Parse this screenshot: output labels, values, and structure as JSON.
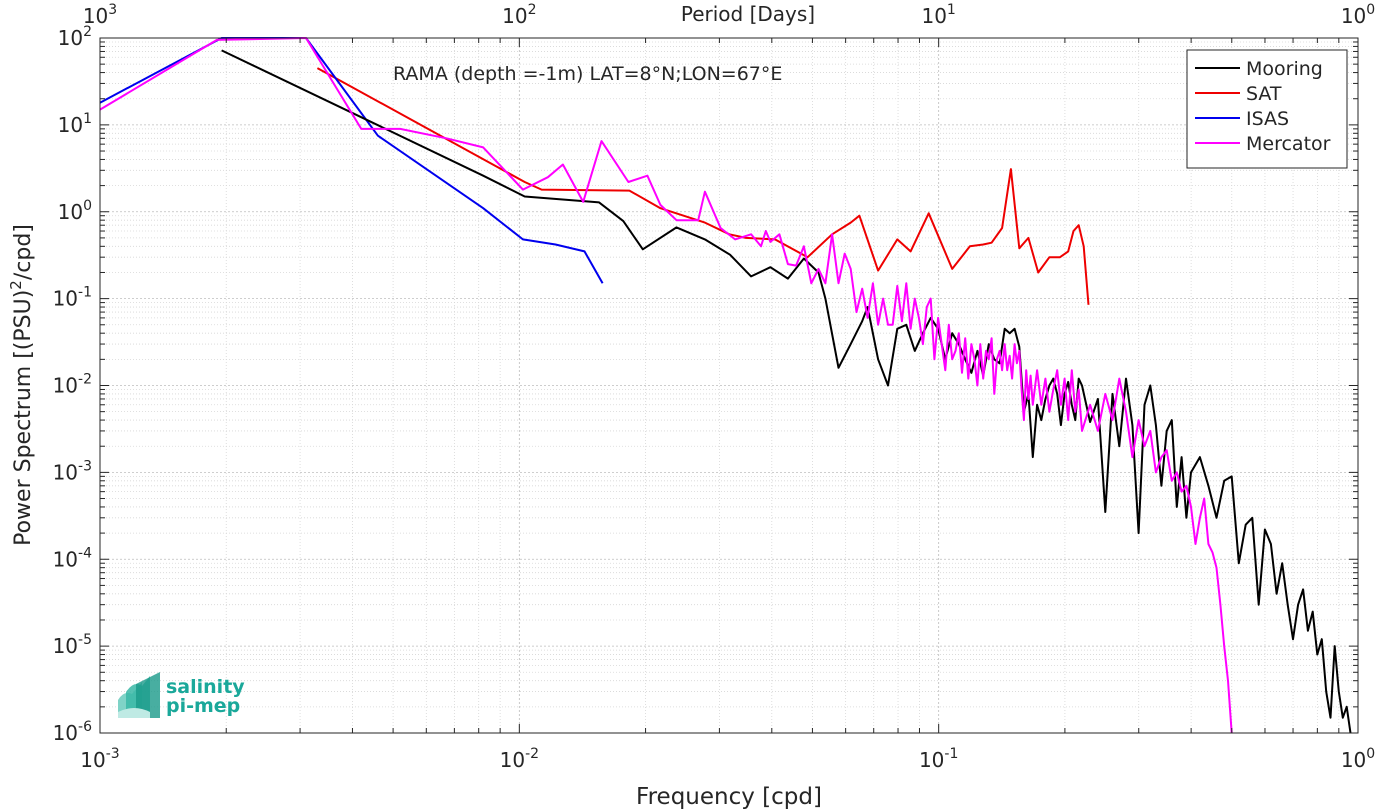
{
  "chart_data": {
    "type": "line",
    "title": "RAMA (depth =-1m) LAT=8°N;LON=67°E",
    "xlabel": "Frequency [cpd]",
    "ylabel_main": "Power Spectrum [(PSU)",
    "ylabel_sup": "2",
    "ylabel_tail": "/cpd]",
    "top_axis_label": "Period [Days]",
    "x_scale": "log",
    "y_scale": "log",
    "xlim": [
      0.001,
      1
    ],
    "ylim": [
      1e-06,
      100
    ],
    "grid": true,
    "legend_position": "top-right",
    "x_ticks": [
      {
        "base": "10",
        "exp": "-3",
        "value": 0.001
      },
      {
        "base": "10",
        "exp": "-2",
        "value": 0.01
      },
      {
        "base": "10",
        "exp": "-1",
        "value": 0.1
      },
      {
        "base": "10",
        "exp": "0",
        "value": 1
      }
    ],
    "top_ticks": [
      {
        "base": "10",
        "exp": "3",
        "value": 0.001
      },
      {
        "base": "10",
        "exp": "2",
        "value": 0.01
      },
      {
        "base": "10",
        "exp": "1",
        "value": 0.1
      },
      {
        "base": "10",
        "exp": "0",
        "value": 1
      }
    ],
    "y_ticks": [
      {
        "base": "10",
        "exp": "-6",
        "value": 1e-06
      },
      {
        "base": "10",
        "exp": "-5",
        "value": 1e-05
      },
      {
        "base": "10",
        "exp": "-4",
        "value": 0.0001
      },
      {
        "base": "10",
        "exp": "-3",
        "value": 0.001
      },
      {
        "base": "10",
        "exp": "-2",
        "value": 0.01
      },
      {
        "base": "10",
        "exp": "-1",
        "value": 0.1
      },
      {
        "base": "10",
        "exp": "0",
        "value": 1
      },
      {
        "base": "10",
        "exp": "1",
        "value": 10
      },
      {
        "base": "10",
        "exp": "2",
        "value": 100
      }
    ],
    "series": [
      {
        "name": "Mooring",
        "color": "#000000",
        "points": [
          [
            0.00195,
            72
          ],
          [
            0.0044,
            11
          ],
          [
            0.0082,
            2.6
          ],
          [
            0.0103,
            1.5
          ],
          [
            0.0155,
            1.28
          ],
          [
            0.0177,
            0.78
          ],
          [
            0.0197,
            0.37
          ],
          [
            0.0237,
            0.66
          ],
          [
            0.0277,
            0.48
          ],
          [
            0.0318,
            0.32
          ],
          [
            0.0357,
            0.18
          ],
          [
            0.0397,
            0.23
          ],
          [
            0.0437,
            0.17
          ],
          [
            0.0477,
            0.29
          ],
          [
            0.0517,
            0.2
          ],
          [
            0.0537,
            0.1
          ],
          [
            0.0577,
            0.016
          ],
          [
            0.0617,
            0.03
          ],
          [
            0.0657,
            0.055
          ],
          [
            0.0677,
            0.08
          ],
          [
            0.0717,
            0.02
          ],
          [
            0.0757,
            0.01
          ],
          [
            0.0797,
            0.045
          ],
          [
            0.0837,
            0.05
          ],
          [
            0.0877,
            0.025
          ],
          [
            0.0917,
            0.04
          ],
          [
            0.0957,
            0.06
          ],
          [
            0.0997,
            0.045
          ],
          [
            0.1037,
            0.02
          ],
          [
            0.1077,
            0.04
          ],
          [
            0.1117,
            0.03
          ],
          [
            0.1157,
            0.02
          ],
          [
            0.1197,
            0.014
          ],
          [
            0.1237,
            0.025
          ],
          [
            0.1277,
            0.013
          ],
          [
            0.1317,
            0.03
          ],
          [
            0.1357,
            0.02
          ],
          [
            0.1397,
            0.018
          ],
          [
            0.1437,
            0.045
          ],
          [
            0.1477,
            0.04
          ],
          [
            0.1517,
            0.045
          ],
          [
            0.1557,
            0.028
          ],
          [
            0.1597,
            0.005
          ],
          [
            0.1637,
            0.008
          ],
          [
            0.1677,
            0.0015
          ],
          [
            0.1717,
            0.006
          ],
          [
            0.1757,
            0.004
          ],
          [
            0.1797,
            0.007
          ],
          [
            0.1837,
            0.01
          ],
          [
            0.1877,
            0.012
          ],
          [
            0.1917,
            0.008
          ],
          [
            0.1957,
            0.0035
          ],
          [
            0.1997,
            0.008
          ],
          [
            0.2037,
            0.011
          ],
          [
            0.2077,
            0.006
          ],
          [
            0.2117,
            0.004
          ],
          [
            0.2157,
            0.012
          ],
          [
            0.2197,
            0.01
          ],
          [
            0.2297,
            0.0038
          ],
          [
            0.2397,
            0.007
          ],
          [
            0.2497,
            0.00035
          ],
          [
            0.2597,
            0.008
          ],
          [
            0.2697,
            0.002
          ],
          [
            0.2797,
            0.012
          ],
          [
            0.2897,
            0.0035
          ],
          [
            0.2997,
            0.0002
          ],
          [
            0.3097,
            0.006
          ],
          [
            0.3197,
            0.01
          ],
          [
            0.3297,
            0.0035
          ],
          [
            0.3397,
            0.0007
          ],
          [
            0.3497,
            0.003
          ],
          [
            0.3597,
            0.004
          ],
          [
            0.3697,
            0.0004
          ],
          [
            0.3797,
            0.0015
          ],
          [
            0.3897,
            0.0003
          ],
          [
            0.3997,
            0.001
          ],
          [
            0.4197,
            0.0015
          ],
          [
            0.4397,
            0.0007
          ],
          [
            0.4597,
            0.0003
          ],
          [
            0.4797,
            0.0008
          ],
          [
            0.4997,
            0.0009
          ],
          [
            0.5197,
            9e-05
          ],
          [
            0.5397,
            0.00025
          ],
          [
            0.5597,
            0.0003
          ],
          [
            0.5797,
            3e-05
          ],
          [
            0.5997,
            0.00022
          ],
          [
            0.6197,
            0.00015
          ],
          [
            0.6397,
            4e-05
          ],
          [
            0.6597,
            9e-05
          ],
          [
            0.6797,
            3e-05
          ],
          [
            0.6997,
            1.2e-05
          ],
          [
            0.7197,
            3e-05
          ],
          [
            0.7397,
            4.5e-05
          ],
          [
            0.7597,
            1.5e-05
          ],
          [
            0.7797,
            2.5e-05
          ],
          [
            0.7997,
            8e-06
          ],
          [
            0.8197,
            1.2e-05
          ],
          [
            0.8397,
            3e-06
          ],
          [
            0.8597,
            1.5e-06
          ],
          [
            0.8797,
            1e-05
          ],
          [
            0.8997,
            3e-06
          ],
          [
            0.9197,
            1.5e-06
          ],
          [
            0.9397,
            2e-06
          ],
          [
            0.9597,
            8e-07
          ]
        ]
      },
      {
        "name": "SAT",
        "color": "#ee0000",
        "points": [
          [
            0.0033,
            45
          ],
          [
            0.0103,
            2.2
          ],
          [
            0.0113,
            1.8
          ],
          [
            0.0183,
            1.75
          ],
          [
            0.0217,
            1.1
          ],
          [
            0.0277,
            0.75
          ],
          [
            0.0317,
            0.55
          ],
          [
            0.0347,
            0.5
          ],
          [
            0.0407,
            0.48
          ],
          [
            0.0487,
            0.3
          ],
          [
            0.0557,
            0.55
          ],
          [
            0.0617,
            0.75
          ],
          [
            0.0647,
            0.9
          ],
          [
            0.0717,
            0.21
          ],
          [
            0.0797,
            0.48
          ],
          [
            0.0857,
            0.35
          ],
          [
            0.0947,
            0.96
          ],
          [
            0.1077,
            0.22
          ],
          [
            0.1187,
            0.4
          ],
          [
            0.1277,
            0.42
          ],
          [
            0.1337,
            0.44
          ],
          [
            0.1417,
            0.65
          ],
          [
            0.1487,
            3.1
          ],
          [
            0.1557,
            0.38
          ],
          [
            0.1637,
            0.5
          ],
          [
            0.1727,
            0.2
          ],
          [
            0.1837,
            0.3
          ],
          [
            0.1947,
            0.3
          ],
          [
            0.2037,
            0.35
          ],
          [
            0.2097,
            0.6
          ],
          [
            0.2157,
            0.7
          ],
          [
            0.2217,
            0.4
          ],
          [
            0.2277,
            0.085
          ]
        ]
      },
      {
        "name": "ISAS",
        "color": "#0000ee",
        "points": [
          [
            0.001,
            18
          ],
          [
            0.00195,
            100
          ],
          [
            0.0031,
            100
          ],
          [
            0.0046,
            7.5
          ],
          [
            0.0082,
            1.1
          ],
          [
            0.0102,
            0.48
          ],
          [
            0.0122,
            0.42
          ],
          [
            0.0143,
            0.35
          ],
          [
            0.0158,
            0.15
          ]
        ]
      },
      {
        "name": "Mercator",
        "color": "#ff00ff",
        "points": [
          [
            0.001,
            15
          ],
          [
            0.0019,
            95
          ],
          [
            0.0031,
            100
          ],
          [
            0.0042,
            9
          ],
          [
            0.0052,
            9
          ],
          [
            0.0067,
            7
          ],
          [
            0.0082,
            5.5
          ],
          [
            0.0102,
            1.8
          ],
          [
            0.0117,
            2.5
          ],
          [
            0.0127,
            3.5
          ],
          [
            0.0142,
            1.3
          ],
          [
            0.0157,
            6.5
          ],
          [
            0.0182,
            2.2
          ],
          [
            0.0202,
            2.6
          ],
          [
            0.0217,
            1.2
          ],
          [
            0.0237,
            0.8
          ],
          [
            0.0267,
            0.8
          ],
          [
            0.0277,
            1.7
          ],
          [
            0.0302,
            0.65
          ],
          [
            0.0327,
            0.48
          ],
          [
            0.0357,
            0.55
          ],
          [
            0.0377,
            0.4
          ],
          [
            0.0387,
            0.6
          ],
          [
            0.0397,
            0.45
          ],
          [
            0.0417,
            0.55
          ],
          [
            0.0437,
            0.25
          ],
          [
            0.0457,
            0.24
          ],
          [
            0.0477,
            0.4
          ],
          [
            0.0497,
            0.15
          ],
          [
            0.0517,
            0.22
          ],
          [
            0.0537,
            0.15
          ],
          [
            0.0557,
            0.55
          ],
          [
            0.0577,
            0.15
          ],
          [
            0.0597,
            0.33
          ],
          [
            0.0617,
            0.22
          ],
          [
            0.0637,
            0.07
          ],
          [
            0.0657,
            0.13
          ],
          [
            0.0677,
            0.06
          ],
          [
            0.0697,
            0.15
          ],
          [
            0.0717,
            0.05
          ],
          [
            0.0737,
            0.1
          ],
          [
            0.0757,
            0.05
          ],
          [
            0.0777,
            0.05
          ],
          [
            0.0797,
            0.14
          ],
          [
            0.0817,
            0.055
          ],
          [
            0.0837,
            0.15
          ],
          [
            0.0857,
            0.045
          ],
          [
            0.0877,
            0.1
          ],
          [
            0.0897,
            0.06
          ],
          [
            0.0917,
            0.03
          ],
          [
            0.0937,
            0.08
          ],
          [
            0.0957,
            0.1
          ],
          [
            0.0977,
            0.02
          ],
          [
            0.0997,
            0.06
          ],
          [
            0.1017,
            0.03
          ],
          [
            0.1037,
            0.015
          ],
          [
            0.1057,
            0.05
          ],
          [
            0.1077,
            0.02
          ],
          [
            0.1097,
            0.025
          ],
          [
            0.1117,
            0.04
          ],
          [
            0.1137,
            0.014
          ],
          [
            0.1157,
            0.035
          ],
          [
            0.1177,
            0.012
          ],
          [
            0.1197,
            0.03
          ],
          [
            0.1217,
            0.02
          ],
          [
            0.1237,
            0.01
          ],
          [
            0.1257,
            0.03
          ],
          [
            0.1277,
            0.012
          ],
          [
            0.1297,
            0.025
          ],
          [
            0.1317,
            0.02
          ],
          [
            0.1337,
            0.035
          ],
          [
            0.1357,
            0.008
          ],
          [
            0.1377,
            0.02
          ],
          [
            0.1397,
            0.025
          ],
          [
            0.1417,
            0.015
          ],
          [
            0.1437,
            0.03
          ],
          [
            0.1457,
            0.015
          ],
          [
            0.1477,
            0.022
          ],
          [
            0.1497,
            0.012
          ],
          [
            0.1517,
            0.03
          ],
          [
            0.1537,
            0.018
          ],
          [
            0.1557,
            0.025
          ],
          [
            0.1577,
            0.009
          ],
          [
            0.1597,
            0.004
          ],
          [
            0.1617,
            0.015
          ],
          [
            0.1637,
            0.007
          ],
          [
            0.1657,
            0.013
          ],
          [
            0.1677,
            0.006
          ],
          [
            0.1717,
            0.015
          ],
          [
            0.1757,
            0.006
          ],
          [
            0.1797,
            0.012
          ],
          [
            0.1837,
            0.005
          ],
          [
            0.1877,
            0.009
          ],
          [
            0.1917,
            0.015
          ],
          [
            0.1957,
            0.006
          ],
          [
            0.1997,
            0.012
          ],
          [
            0.2037,
            0.004
          ],
          [
            0.2077,
            0.015
          ],
          [
            0.2117,
            0.005
          ],
          [
            0.2157,
            0.009
          ],
          [
            0.2197,
            0.003
          ],
          [
            0.2297,
            0.006
          ],
          [
            0.2397,
            0.003
          ],
          [
            0.2497,
            0.008
          ],
          [
            0.2597,
            0.004
          ],
          [
            0.2697,
            0.012
          ],
          [
            0.2797,
            0.005
          ],
          [
            0.2897,
            0.0015
          ],
          [
            0.2997,
            0.004
          ],
          [
            0.3097,
            0.002
          ],
          [
            0.3197,
            0.003
          ],
          [
            0.3297,
            0.001
          ],
          [
            0.3397,
            0.0015
          ],
          [
            0.3497,
            0.0018
          ],
          [
            0.3597,
            0.0008
          ],
          [
            0.3697,
            0.001
          ],
          [
            0.3797,
            0.0006
          ],
          [
            0.3897,
            0.0007
          ],
          [
            0.3997,
            0.0004
          ],
          [
            0.4097,
            0.00015
          ],
          [
            0.4197,
            0.0003
          ],
          [
            0.4297,
            0.0005
          ],
          [
            0.4397,
            0.00015
          ],
          [
            0.4497,
            0.00012
          ],
          [
            0.4597,
            8e-05
          ],
          [
            0.4697,
            3e-05
          ],
          [
            0.4797,
            1e-05
          ],
          [
            0.4897,
            4e-06
          ],
          [
            0.4997,
            1e-06
          ]
        ]
      }
    ]
  },
  "logo": {
    "line1": "salinity",
    "line2": "pi-mep",
    "color": "#1aa89a"
  }
}
